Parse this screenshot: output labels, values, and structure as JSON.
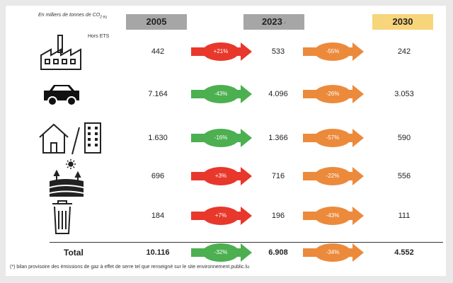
{
  "unit_label_main": "En milliers de tonnes de CO",
  "unit_label_sub": "2 éq",
  "years": [
    {
      "label": "2005",
      "color": "#a6a6a6"
    },
    {
      "label": "2023",
      "mark": "◦",
      "color": "#a6a6a6"
    },
    {
      "label": "2030",
      "color": "#f7d57a"
    }
  ],
  "colors": {
    "red": "#e8382b",
    "green": "#4caf50",
    "orange": "#ec8a3c"
  },
  "rows": [
    {
      "icon": "factory-icon",
      "icon_label": "Hors ETS",
      "v2005": "442",
      "change1": "+21%",
      "color1": "red",
      "v2023": "533",
      "change2": "-55%",
      "color2": "orange",
      "v2030": "242"
    },
    {
      "icon": "car-icon",
      "v2005": "7.164",
      "change1": "-43%",
      "color1": "green",
      "v2023": "4.096",
      "change2": "-26%",
      "color2": "orange",
      "v2030": "3.053"
    },
    {
      "icon": "house-building-icon",
      "v2005": "1.630",
      "change1": "-16%",
      "color1": "green",
      "v2023": "1.366",
      "change2": "-57%",
      "color2": "orange",
      "v2030": "590"
    },
    {
      "icon": "agriculture-icon",
      "v2005": "696",
      "change1": "+3%",
      "color1": "red",
      "v2023": "716",
      "change2": "-22%",
      "color2": "orange",
      "v2030": "556"
    },
    {
      "icon": "trash-bin-icon",
      "v2005": "184",
      "change1": "+7%",
      "color1": "red",
      "v2023": "196",
      "change2": "-43%",
      "color2": "orange",
      "v2030": "111"
    }
  ],
  "total": {
    "label": "Total",
    "v2005": "10.116",
    "change1": "-32%",
    "color1": "green",
    "v2023": "6.908",
    "change2": "-34%",
    "color2": "orange",
    "v2030": "4.552"
  },
  "footnote": "(*) bilan provisoire des émissions de gaz à effet de serre tel que renseigné sur le site environnement.public.lu"
}
